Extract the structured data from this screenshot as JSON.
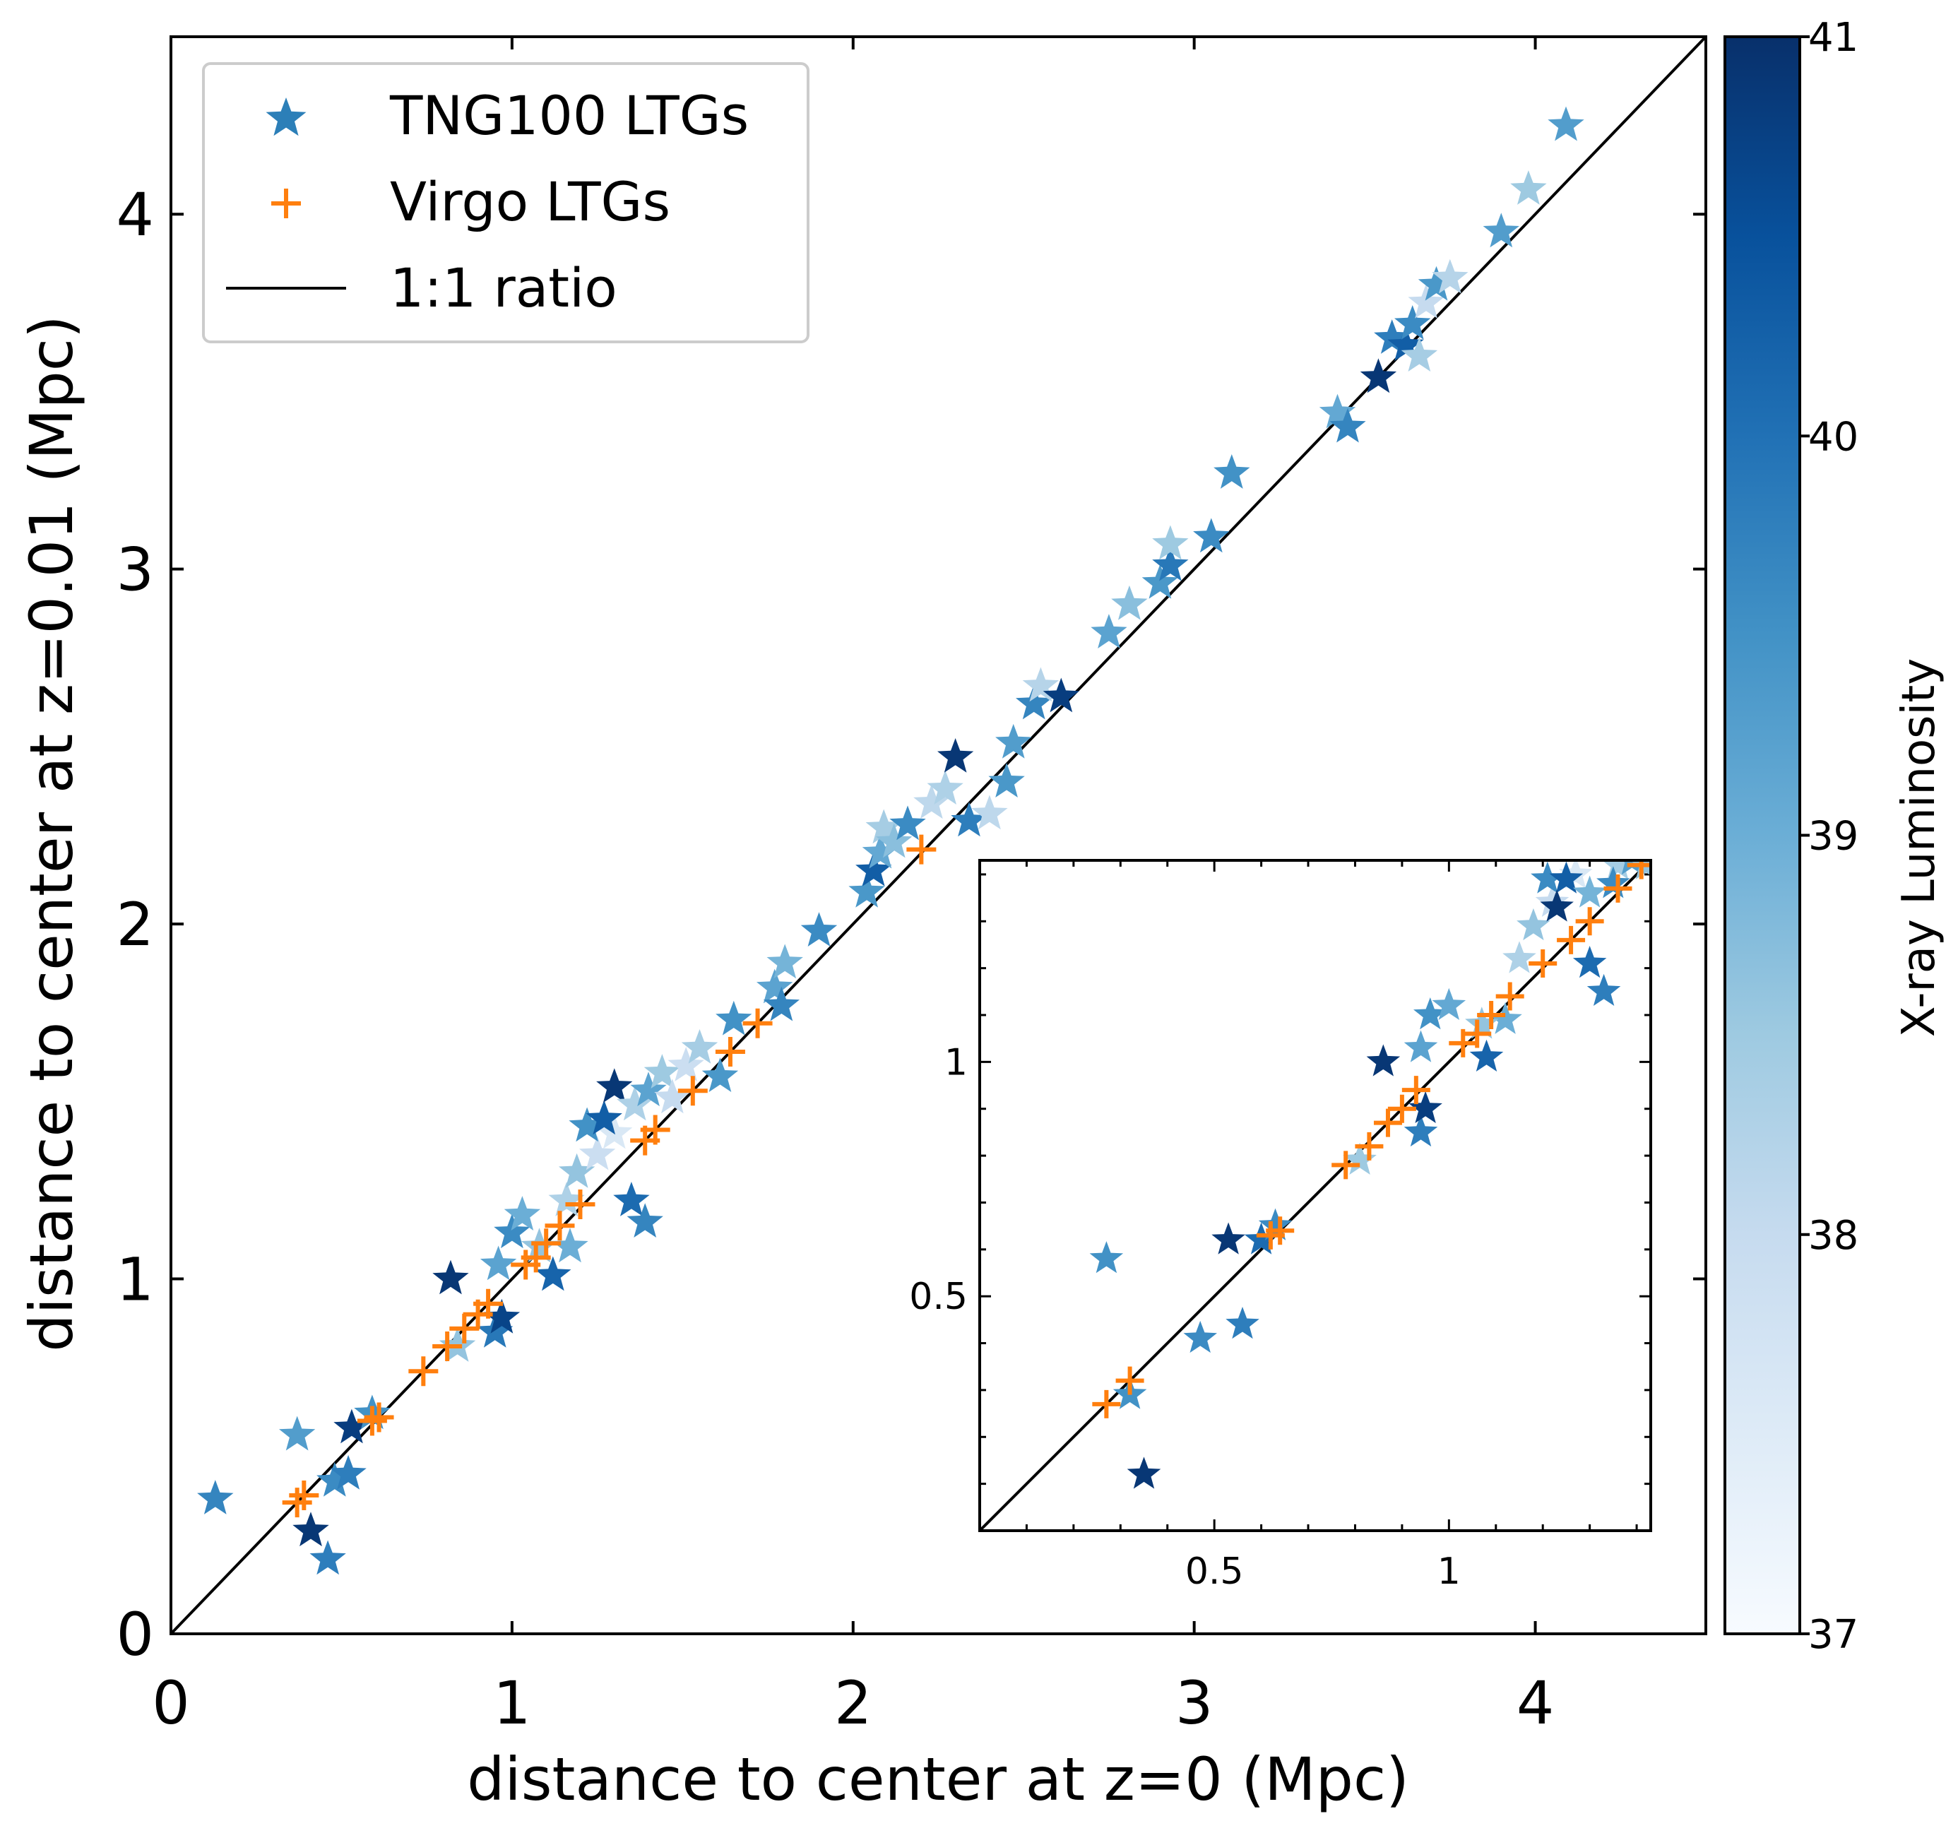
{
  "chart_data": {
    "type": "scatter",
    "xlabel": "distance to center at z=0 (Mpc)",
    "ylabel": "distance to center at z=0.01 (Mpc)",
    "xlim": [
      0,
      4.5
    ],
    "ylim": [
      0,
      4.5
    ],
    "xticks": [
      "0",
      "1",
      "2",
      "3",
      "4"
    ],
    "yticks": [
      "0",
      "1",
      "2",
      "3",
      "4"
    ],
    "legend": {
      "position": "upper-left",
      "entries": [
        "TNG100 LTGs",
        "Virgo LTGs",
        "1:1 ratio"
      ]
    },
    "colorbar": {
      "label": "X-ray Luminosity",
      "range": [
        37,
        41
      ],
      "ticks": [
        "37",
        "38",
        "39",
        "40",
        "41"
      ]
    },
    "colors": {
      "virgo": "#ff7f0e",
      "line": "#000000",
      "cmap_light": "#f7fbff",
      "cmap_dark": "#08306b"
    },
    "series": [
      {
        "name": "TNG100 LTGs",
        "marker": "star",
        "points": [
          [
            0.13,
            0.38,
            39.7
          ],
          [
            0.37,
            0.56,
            39.3
          ],
          [
            0.41,
            0.29,
            40.9
          ],
          [
            0.46,
            0.21,
            39.8
          ],
          [
            0.48,
            0.43,
            39.6
          ],
          [
            0.52,
            0.45,
            39.8
          ],
          [
            0.53,
            0.58,
            40.8
          ],
          [
            0.59,
            0.62,
            39.5
          ],
          [
            0.82,
            1.0,
            40.9
          ],
          [
            0.84,
            0.81,
            38.6
          ],
          [
            0.95,
            0.85,
            39.9
          ],
          [
            0.97,
            0.89,
            40.7
          ],
          [
            0.96,
            1.04,
            39.2
          ],
          [
            1.0,
            1.13,
            39.6
          ],
          [
            1.03,
            1.18,
            39.0
          ],
          [
            1.12,
            1.01,
            40.2
          ],
          [
            1.17,
            1.09,
            39.0
          ],
          [
            1.08,
            1.09,
            38.6
          ],
          [
            1.16,
            1.22,
            38.3
          ],
          [
            1.19,
            1.3,
            38.6
          ],
          [
            1.25,
            1.35,
            37.9
          ],
          [
            1.3,
            1.41,
            37.6
          ],
          [
            1.22,
            1.43,
            39.5
          ],
          [
            1.27,
            1.45,
            40.3
          ],
          [
            1.3,
            1.54,
            40.9
          ],
          [
            1.35,
            1.22,
            40.1
          ],
          [
            1.39,
            1.16,
            39.7
          ],
          [
            1.36,
            1.49,
            38.3
          ],
          [
            1.4,
            1.53,
            39.2
          ],
          [
            1.44,
            1.58,
            38.5
          ],
          [
            1.47,
            1.51,
            38.0
          ],
          [
            1.51,
            1.6,
            37.9
          ],
          [
            1.55,
            1.65,
            38.4
          ],
          [
            1.61,
            1.57,
            39.4
          ],
          [
            1.65,
            1.73,
            39.5
          ],
          [
            1.77,
            1.82,
            39.2
          ],
          [
            1.8,
            1.89,
            38.9
          ],
          [
            1.79,
            1.77,
            39.7
          ],
          [
            1.9,
            1.98,
            39.6
          ],
          [
            2.04,
            2.09,
            39.4
          ],
          [
            2.06,
            2.15,
            40.3
          ],
          [
            2.08,
            2.2,
            39.1
          ],
          [
            2.09,
            2.27,
            38.4
          ],
          [
            2.12,
            2.23,
            38.7
          ],
          [
            2.16,
            2.28,
            39.6
          ],
          [
            2.23,
            2.34,
            38.1
          ],
          [
            2.27,
            2.38,
            38.3
          ],
          [
            2.3,
            2.47,
            40.9
          ],
          [
            2.34,
            2.29,
            39.8
          ],
          [
            2.4,
            2.31,
            38.1
          ],
          [
            2.45,
            2.4,
            39.4
          ],
          [
            2.47,
            2.51,
            39.3
          ],
          [
            2.53,
            2.62,
            39.7
          ],
          [
            2.55,
            2.67,
            38.2
          ],
          [
            2.61,
            2.64,
            40.8
          ],
          [
            2.75,
            2.82,
            39.2
          ],
          [
            2.81,
            2.9,
            38.7
          ],
          [
            2.9,
            2.96,
            39.4
          ],
          [
            2.93,
            3.01,
            39.9
          ],
          [
            2.93,
            3.07,
            38.5
          ],
          [
            3.05,
            3.09,
            39.6
          ],
          [
            3.11,
            3.27,
            39.5
          ],
          [
            3.42,
            3.44,
            39.1
          ],
          [
            3.45,
            3.4,
            39.7
          ],
          [
            3.54,
            3.54,
            40.9
          ],
          [
            3.58,
            3.65,
            39.8
          ],
          [
            3.62,
            3.63,
            40.3
          ],
          [
            3.64,
            3.69,
            39.6
          ],
          [
            3.66,
            3.6,
            38.4
          ],
          [
            3.68,
            3.75,
            38.0
          ],
          [
            3.71,
            3.8,
            39.4
          ],
          [
            3.75,
            3.82,
            38.2
          ],
          [
            3.9,
            3.95,
            39.3
          ],
          [
            3.98,
            4.07,
            38.5
          ],
          [
            4.09,
            4.25,
            39.3
          ]
        ]
      },
      {
        "name": "Virgo LTGs",
        "marker": "plus",
        "points": [
          [
            0.37,
            0.37
          ],
          [
            0.39,
            0.39
          ],
          [
            0.59,
            0.6
          ],
          [
            0.61,
            0.61
          ],
          [
            0.74,
            0.74
          ],
          [
            0.81,
            0.81
          ],
          [
            0.86,
            0.86
          ],
          [
            0.9,
            0.9
          ],
          [
            0.93,
            0.93
          ],
          [
            1.04,
            1.04
          ],
          [
            1.07,
            1.06
          ],
          [
            1.1,
            1.1
          ],
          [
            1.14,
            1.15
          ],
          [
            1.2,
            1.21
          ],
          [
            1.39,
            1.39
          ],
          [
            1.42,
            1.42
          ],
          [
            1.53,
            1.53
          ],
          [
            1.64,
            1.64
          ],
          [
            1.72,
            1.72
          ],
          [
            2.2,
            2.21
          ]
        ]
      }
    ],
    "inset": {
      "xlim": [
        0,
        1.43
      ],
      "ylim": [
        0,
        1.43
      ],
      "xticks": [
        "0.5",
        "1"
      ],
      "yticks": [
        "0.5",
        "1"
      ],
      "stars": [
        [
          0.27,
          0.58,
          39.5
        ],
        [
          0.32,
          0.29,
          39.5
        ],
        [
          0.35,
          0.12,
          40.9
        ],
        [
          0.47,
          0.41,
          39.6
        ],
        [
          0.56,
          0.44,
          39.8
        ],
        [
          0.53,
          0.62,
          40.9
        ],
        [
          0.6,
          0.62,
          40.1
        ],
        [
          0.63,
          0.65,
          39.6
        ],
        [
          0.81,
          0.79,
          38.5
        ],
        [
          0.86,
          1.0,
          40.9
        ],
        [
          0.94,
          0.85,
          39.8
        ],
        [
          0.95,
          0.9,
          40.8
        ],
        [
          0.94,
          1.03,
          39.2
        ],
        [
          0.96,
          1.1,
          39.5
        ],
        [
          1.0,
          1.12,
          39.1
        ],
        [
          1.08,
          1.01,
          40.2
        ],
        [
          1.12,
          1.09,
          39.0
        ],
        [
          1.07,
          1.08,
          38.6
        ],
        [
          1.15,
          1.22,
          38.3
        ],
        [
          1.18,
          1.29,
          38.6
        ],
        [
          1.22,
          1.34,
          38.0
        ],
        [
          1.27,
          1.4,
          37.6
        ],
        [
          1.21,
          1.39,
          39.6
        ],
        [
          1.25,
          1.39,
          40.3
        ],
        [
          1.23,
          1.33,
          40.9
        ],
        [
          1.3,
          1.21,
          40.1
        ],
        [
          1.33,
          1.15,
          39.8
        ],
        [
          1.36,
          1.42,
          38.4
        ],
        [
          1.39,
          1.43,
          39.3
        ],
        [
          1.42,
          1.42,
          38.6
        ],
        [
          1.3,
          1.36,
          38.9
        ],
        [
          1.35,
          1.38,
          39.6
        ]
      ],
      "pluses": [
        [
          0.27,
          0.27
        ],
        [
          0.32,
          0.32
        ],
        [
          0.64,
          0.64
        ],
        [
          0.62,
          0.63
        ],
        [
          0.78,
          0.78
        ],
        [
          0.83,
          0.82
        ],
        [
          0.87,
          0.87
        ],
        [
          0.9,
          0.9
        ],
        [
          0.93,
          0.94
        ],
        [
          1.03,
          1.04
        ],
        [
          1.06,
          1.06
        ],
        [
          1.09,
          1.1
        ],
        [
          1.13,
          1.14
        ],
        [
          1.2,
          1.21
        ],
        [
          1.26,
          1.26
        ],
        [
          1.3,
          1.3
        ],
        [
          1.36,
          1.37
        ],
        [
          1.41,
          1.42
        ]
      ]
    }
  }
}
